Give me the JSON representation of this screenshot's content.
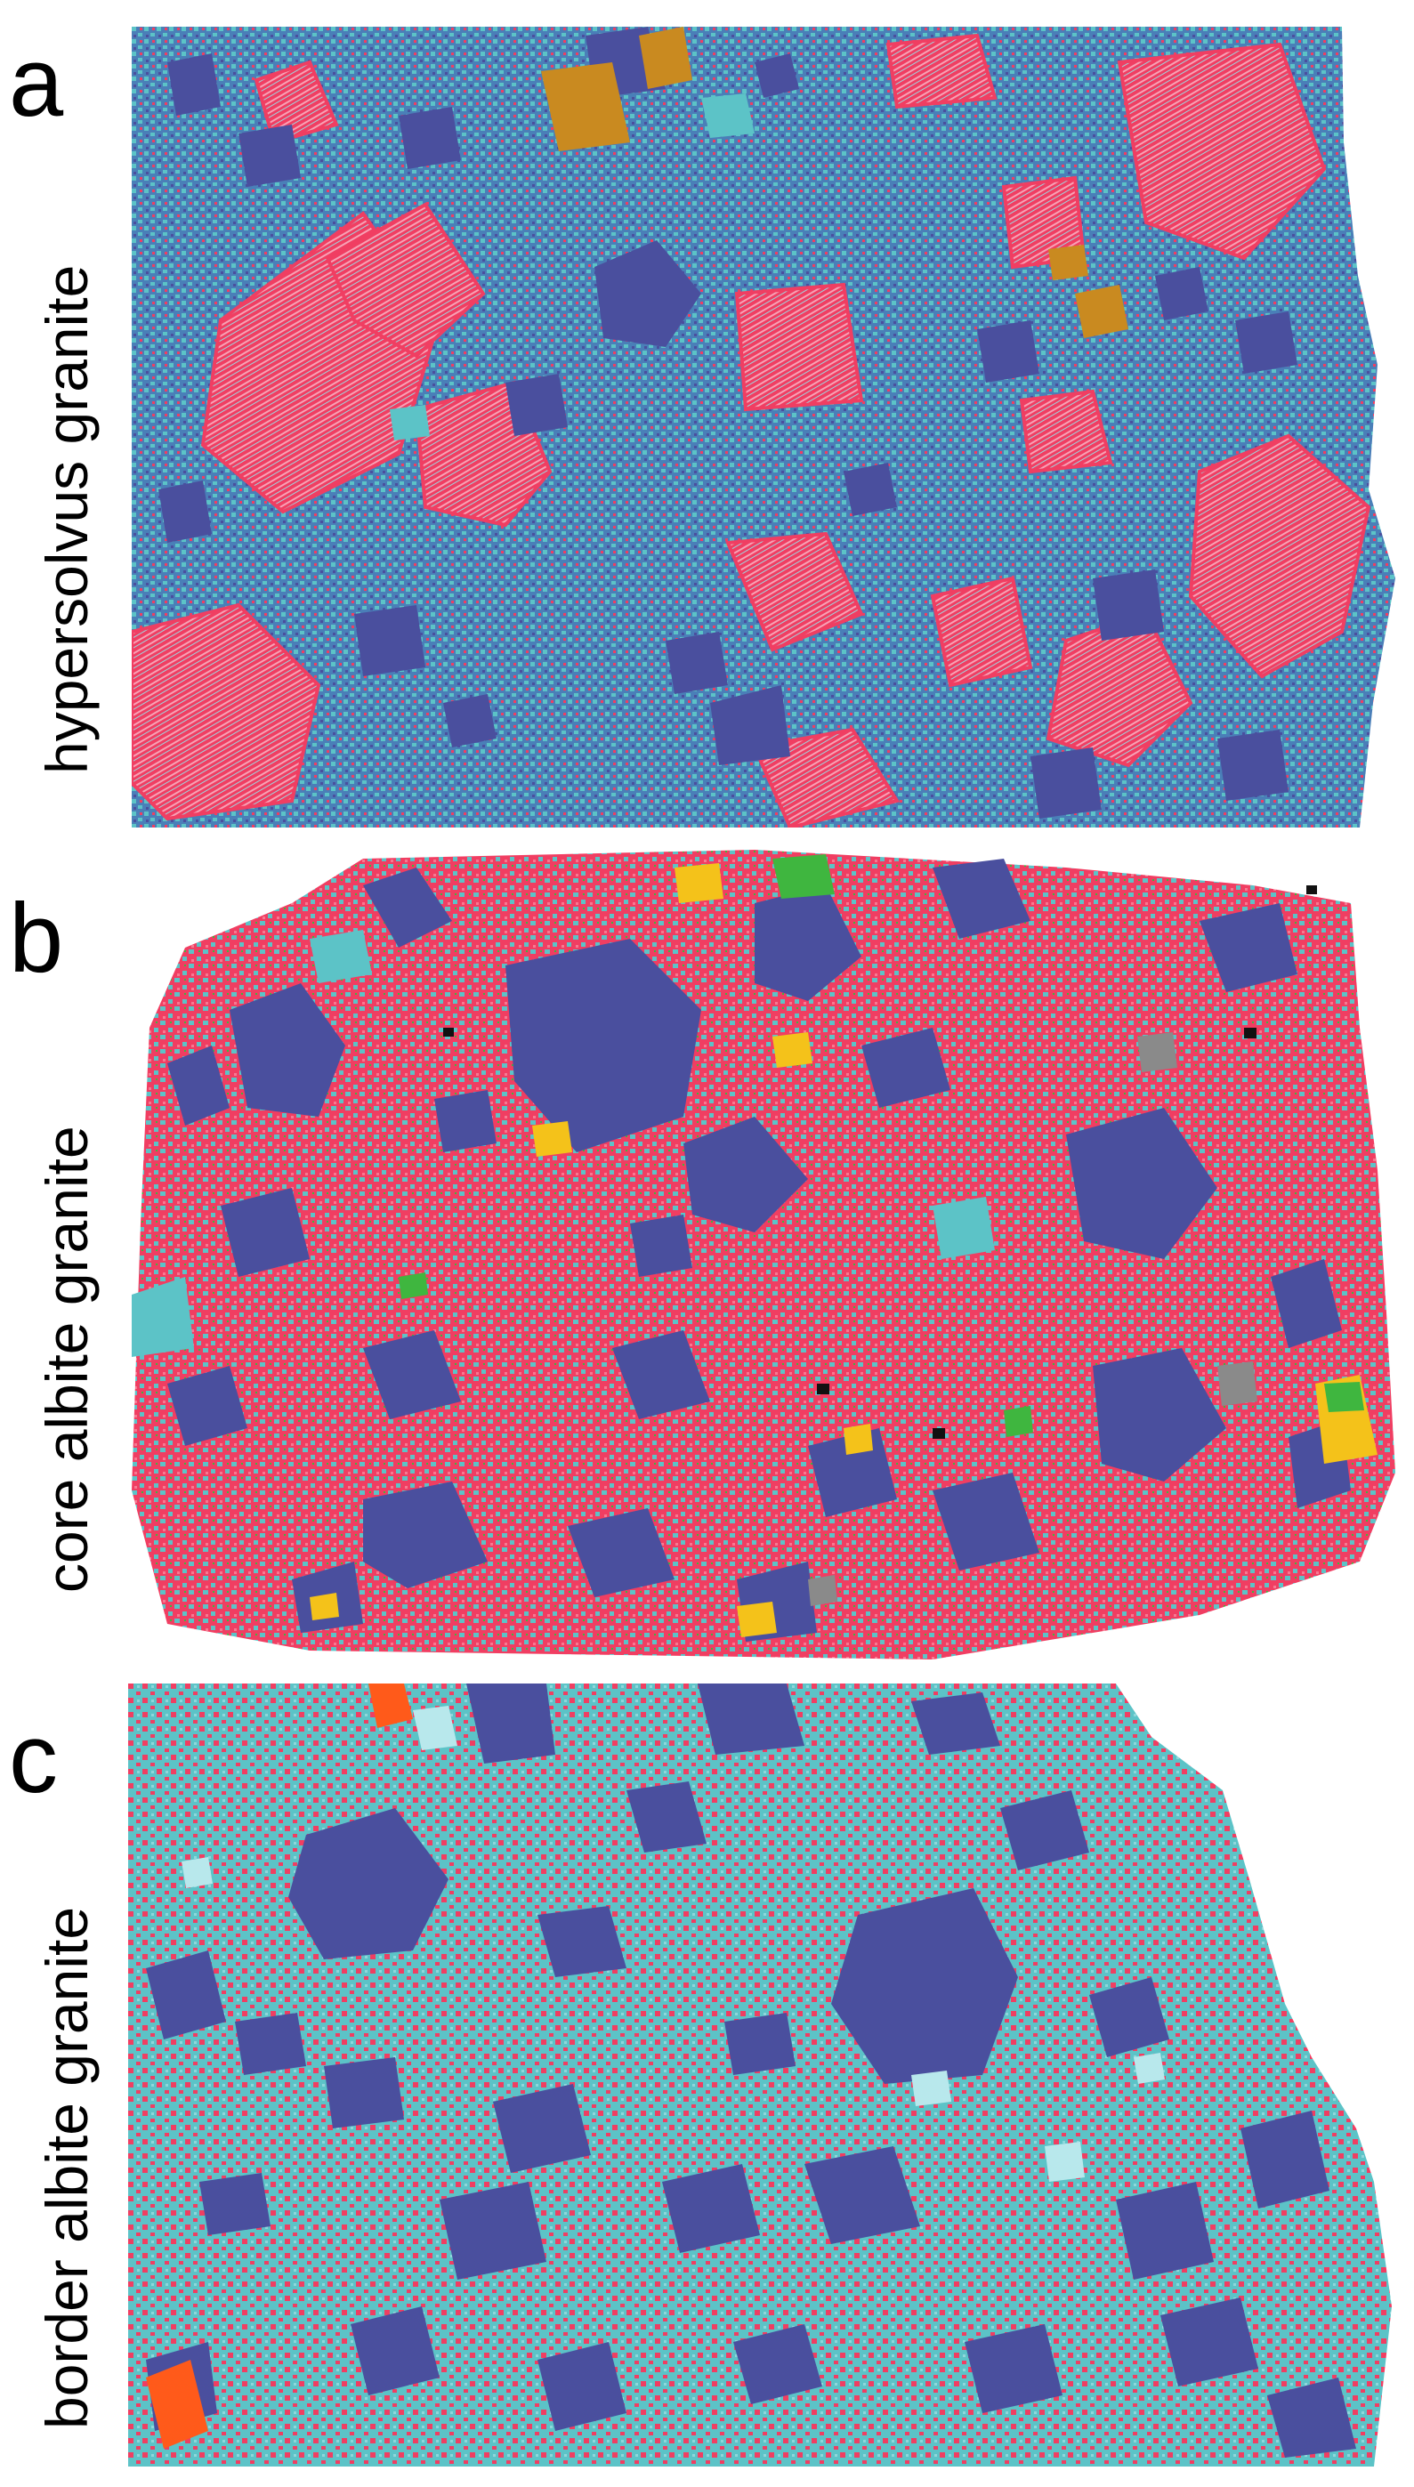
{
  "panels": [
    {
      "letter": "a",
      "caption": "hypersolvus granite"
    },
    {
      "letter": "b",
      "caption": "core albite granite"
    },
    {
      "letter": "c",
      "caption": "border albite granite"
    }
  ],
  "mineral_colors": {
    "dark_blue": "#4a4f9e",
    "pink_red": "#f03e62",
    "cyan": "#5cc3c7",
    "ochre": "#c98a20",
    "yellow": "#f4c21a",
    "green": "#3fb63f",
    "orange": "#ff5a1a",
    "light_cyan": "#b8e8ec",
    "black": "#111111",
    "grey": "#8a8a8a"
  }
}
